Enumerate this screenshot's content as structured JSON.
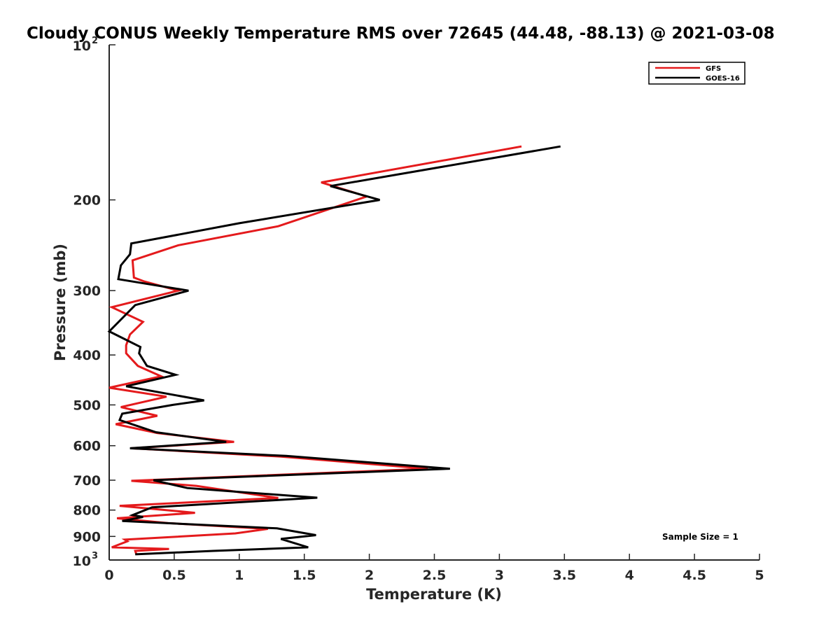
{
  "chart_data": {
    "type": "line",
    "title": "Cloudy CONUS Weekly Temperature RMS over 72645 (44.48, -88.13) @ 2021-03-08",
    "xlabel": "Temperature (K)",
    "ylabel": "Pressure (mb)",
    "xlim": [
      0,
      5
    ],
    "ylim": [
      100,
      1000
    ],
    "y_scale": "log",
    "y_reversed": true,
    "grid": false,
    "legend_position": "top-right",
    "x_ticks": [
      0,
      0.5,
      1,
      1.5,
      2,
      2.5,
      3,
      3.5,
      4,
      4.5,
      5
    ],
    "x_tick_labels": [
      "0",
      "0.5",
      "1",
      "1.5",
      "2",
      "2.5",
      "3",
      "3.5",
      "4",
      "4.5",
      "5"
    ],
    "y_ticks": [
      200,
      300,
      400,
      500,
      600,
      700,
      800,
      900
    ],
    "y_tick_labels": [
      "200",
      "300",
      "400",
      "500",
      "600",
      "700",
      "800",
      "900"
    ],
    "y_ticks_pow": [
      {
        "value": 100,
        "base": "10",
        "exp": "2"
      },
      {
        "value": 1000,
        "base": "10",
        "exp": "3"
      }
    ],
    "annotation": "Sample Size = 1",
    "series": [
      {
        "name": "GFS",
        "color": "#e41a1c",
        "points": [
          [
            3.17,
            157.5
          ],
          [
            1.63,
            185
          ],
          [
            1.98,
            197
          ],
          [
            1.3,
            225
          ],
          [
            0.53,
            245
          ],
          [
            0.18,
            262
          ],
          [
            0.19,
            283
          ],
          [
            0.27,
            288
          ],
          [
            0.53,
            300
          ],
          [
            0.02,
            323
          ],
          [
            0.26,
            345
          ],
          [
            0.16,
            365
          ],
          [
            0.13,
            383
          ],
          [
            0.13,
            397
          ],
          [
            0.22,
            420
          ],
          [
            0.4,
            440
          ],
          [
            0.0,
            463
          ],
          [
            0.44,
            482
          ],
          [
            0.09,
            505
          ],
          [
            0.37,
            525
          ],
          [
            0.05,
            545
          ],
          [
            0.37,
            567
          ],
          [
            0.96,
            590
          ],
          [
            0.17,
            607
          ],
          [
            1.32,
            630
          ],
          [
            2.45,
            665
          ],
          [
            0.17,
            702
          ],
          [
            0.67,
            718
          ],
          [
            1.3,
            758
          ],
          [
            0.08,
            785
          ],
          [
            0.66,
            810
          ],
          [
            0.06,
            830
          ],
          [
            0.45,
            848
          ],
          [
            1.22,
            870
          ],
          [
            0.97,
            888
          ],
          [
            0.12,
            913
          ],
          [
            0.14,
            920
          ],
          [
            0.02,
            945
          ],
          [
            0.46,
            952
          ],
          [
            0.2,
            960
          ],
          [
            0.21,
            977
          ]
        ]
      },
      {
        "name": "GOES-16",
        "color": "#000000",
        "points": [
          [
            3.47,
            157.5
          ],
          [
            1.7,
            188
          ],
          [
            2.08,
            200
          ],
          [
            1.0,
            222
          ],
          [
            0.17,
            243
          ],
          [
            0.16,
            255
          ],
          [
            0.09,
            268
          ],
          [
            0.07,
            285
          ],
          [
            0.61,
            300
          ],
          [
            0.2,
            320
          ],
          [
            0.0,
            360
          ],
          [
            0.24,
            386
          ],
          [
            0.23,
            397
          ],
          [
            0.29,
            420
          ],
          [
            0.51,
            437
          ],
          [
            0.13,
            460
          ],
          [
            0.73,
            490
          ],
          [
            0.49,
            500
          ],
          [
            0.1,
            520
          ],
          [
            0.08,
            535
          ],
          [
            0.36,
            565
          ],
          [
            0.9,
            590
          ],
          [
            0.16,
            607
          ],
          [
            1.36,
            628
          ],
          [
            2.62,
            665
          ],
          [
            0.34,
            700
          ],
          [
            0.6,
            725
          ],
          [
            1.6,
            757
          ],
          [
            0.33,
            790
          ],
          [
            0.18,
            818
          ],
          [
            0.26,
            825
          ],
          [
            0.1,
            840
          ],
          [
            1.29,
            868
          ],
          [
            1.59,
            895
          ],
          [
            1.32,
            910
          ],
          [
            1.53,
            945
          ],
          [
            0.8,
            960
          ],
          [
            0.2,
            975
          ]
        ]
      }
    ]
  }
}
